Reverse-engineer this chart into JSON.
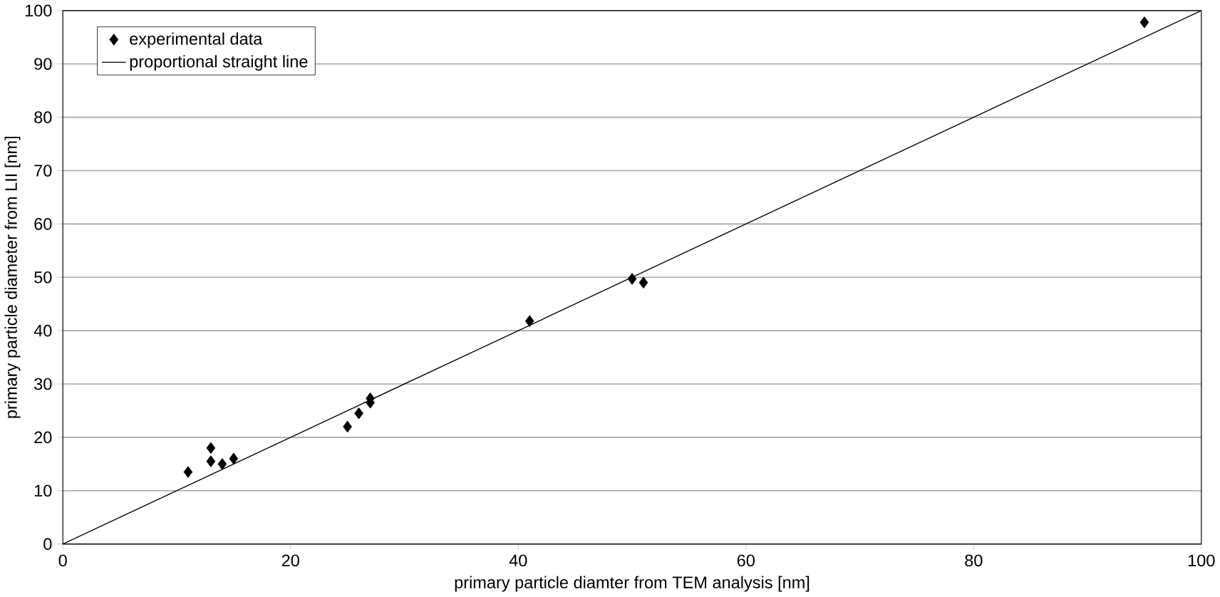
{
  "chart_data": {
    "type": "scatter",
    "xlabel": "primary particle diamter from TEM analysis [nm]",
    "ylabel": "primary particle diameter from LII [nm]",
    "xlim": [
      0,
      100
    ],
    "ylim": [
      0,
      100
    ],
    "xticks": [
      0,
      20,
      40,
      60,
      80,
      100
    ],
    "yticks": [
      0,
      10,
      20,
      30,
      40,
      50,
      60,
      70,
      80,
      90,
      100
    ],
    "grid": "y",
    "legend": "top left",
    "series": [
      {
        "name": "experimental data",
        "marker": "diamond",
        "color": "#000000",
        "x": [
          11,
          13,
          13,
          14,
          15,
          25,
          26,
          27,
          27,
          41,
          50,
          51,
          95
        ],
        "values": [
          13.5,
          18,
          15.5,
          15,
          16,
          22,
          24.5,
          26.5,
          27.3,
          41.8,
          49.7,
          49,
          97.8
        ]
      },
      {
        "name": "proportional straight line",
        "type": "line",
        "marker": "none",
        "line_style": "solid",
        "color": "#000000",
        "x": [
          0,
          100
        ],
        "values": [
          0,
          100
        ]
      }
    ]
  }
}
